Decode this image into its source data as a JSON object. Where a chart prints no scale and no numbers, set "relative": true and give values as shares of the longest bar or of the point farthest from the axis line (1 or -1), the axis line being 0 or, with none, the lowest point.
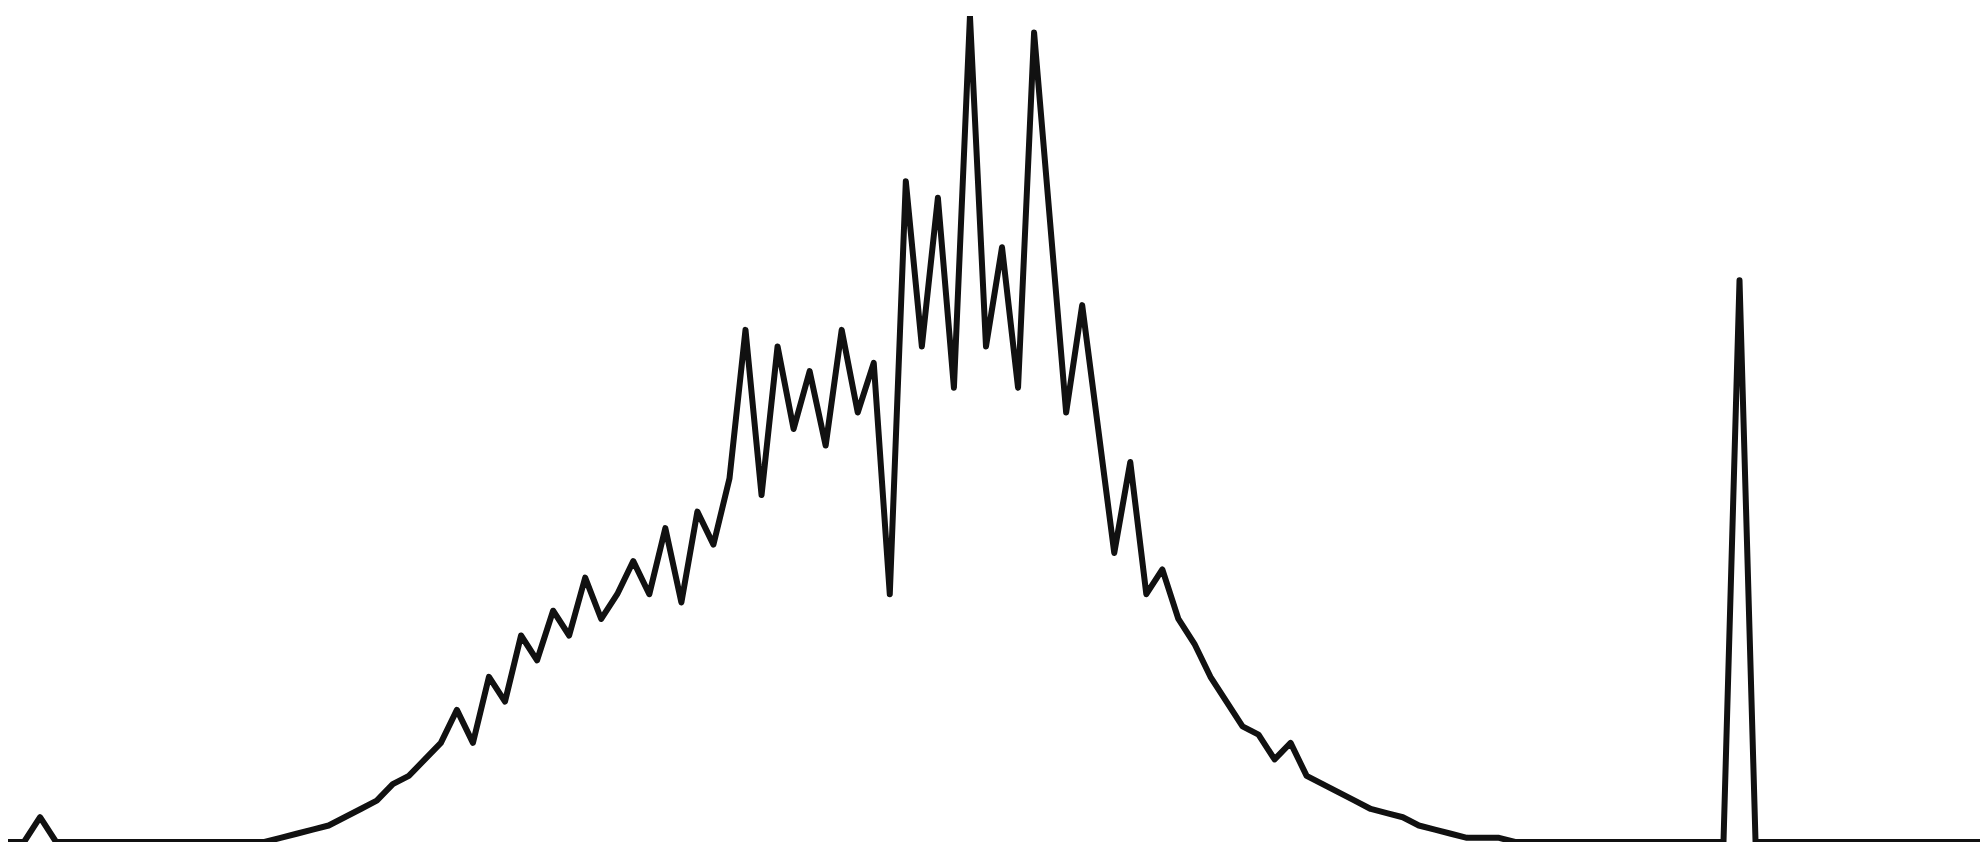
{
  "chart_data": {
    "type": "line",
    "relative": true,
    "color": "#111111",
    "categories": [
      null,
      null,
      null,
      null,
      null,
      null,
      null,
      null,
      null,
      null,
      null,
      null,
      null,
      null,
      null,
      null,
      null,
      null,
      null,
      null,
      null,
      null,
      null,
      null,
      null,
      null,
      null,
      null,
      null,
      null,
      null,
      null,
      null,
      null,
      null,
      null,
      null,
      null,
      null,
      null,
      null,
      null,
      null,
      null,
      null,
      null,
      null,
      null,
      null,
      null,
      null,
      null,
      null,
      null,
      null,
      null,
      null,
      null,
      null,
      null,
      null,
      null,
      null,
      null,
      null,
      null,
      null,
      null,
      null,
      null,
      null,
      null,
      null,
      null,
      null,
      null,
      null,
      null,
      null,
      null,
      null,
      null,
      null,
      null,
      null,
      null,
      null,
      null,
      null,
      null,
      null,
      null,
      null,
      null,
      null,
      null,
      null,
      null,
      null,
      null,
      null,
      null,
      null,
      null,
      null,
      null,
      null,
      null,
      null,
      null,
      null,
      null,
      null,
      null,
      null,
      null,
      null,
      null,
      null,
      null,
      null,
      null,
      null,
      null
    ],
    "values": [
      0,
      0,
      0.03,
      0,
      0,
      0,
      0,
      0,
      0,
      0,
      0,
      0,
      0,
      0,
      0,
      0,
      0,
      0.005,
      0.01,
      0.015,
      0.02,
      0.03,
      0.04,
      0.05,
      0.07,
      0.08,
      0.1,
      0.12,
      0.16,
      0.12,
      0.2,
      0.17,
      0.25,
      0.22,
      0.28,
      0.25,
      0.32,
      0.27,
      0.3,
      0.34,
      0.3,
      0.38,
      0.29,
      0.4,
      0.36,
      0.44,
      0.62,
      0.42,
      0.6,
      0.5,
      0.57,
      0.48,
      0.62,
      0.52,
      0.58,
      0.3,
      0.8,
      0.6,
      0.78,
      0.55,
      1,
      0.6,
      0.72,
      0.55,
      0.98,
      0.75,
      0.52,
      0.65,
      0.5,
      0.35,
      0.46,
      0.3,
      0.33,
      0.27,
      0.24,
      0.2,
      0.17,
      0.14,
      0.13,
      0.1,
      0.12,
      0.08,
      0.07,
      0.06,
      0.05,
      0.04,
      0.035,
      0.03,
      0.02,
      0.015,
      0.01,
      0.005,
      0.005,
      0.005,
      0,
      0,
      0,
      0,
      0,
      0,
      0,
      0,
      0,
      0,
      0,
      0,
      0,
      0,
      0.68,
      0,
      0,
      0,
      0,
      0,
      0,
      0,
      0,
      0,
      0,
      0,
      0,
      0,
      0,
      0
    ]
  }
}
